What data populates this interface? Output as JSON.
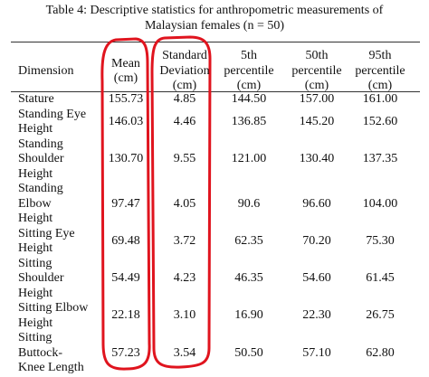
{
  "title": [
    "Table 4: Descriptive statistics for anthropometric measurements of",
    "Malaysian females (n = 50)"
  ],
  "table": {
    "header": [
      [
        "Dimension"
      ],
      [
        "Mean",
        "(cm)"
      ],
      [
        "Standard",
        "Deviation",
        "(cm)"
      ],
      [
        "5th",
        "percentile",
        "(cm)"
      ],
      [
        "50th",
        "percentile",
        "(cm)"
      ],
      [
        "95th",
        "percentile",
        "(cm)"
      ]
    ],
    "rows": [
      [
        [
          "Stature"
        ],
        "155.73",
        "4.85",
        "144.50",
        "157.00",
        "161.00"
      ],
      [
        [
          "Standing Eye",
          "Height"
        ],
        "146.03",
        "4.46",
        "136.85",
        "145.20",
        "152.60"
      ],
      [
        [
          "Standing",
          "Shoulder",
          "Height"
        ],
        "130.70",
        "9.55",
        "121.00",
        "130.40",
        "137.35"
      ],
      [
        [
          "Standing",
          "Elbow",
          "Height"
        ],
        "97.47",
        "4.05",
        "90.6",
        "96.60",
        "104.00"
      ],
      [
        [
          "Sitting Eye",
          "Height"
        ],
        "69.48",
        "3.72",
        "62.35",
        "70.20",
        "75.30"
      ],
      [
        [
          "Sitting",
          "Shoulder",
          "Height"
        ],
        "54.49",
        "4.23",
        "46.35",
        "54.60",
        "61.45"
      ],
      [
        [
          "Sitting Elbow",
          "Height"
        ],
        "22.18",
        "3.10",
        "16.90",
        "22.30",
        "26.75"
      ],
      [
        [
          "Sitting",
          "Buttock-",
          "Knee Length"
        ],
        "57.23",
        "3.54",
        "50.50",
        "57.10",
        "62.80"
      ]
    ]
  }
}
